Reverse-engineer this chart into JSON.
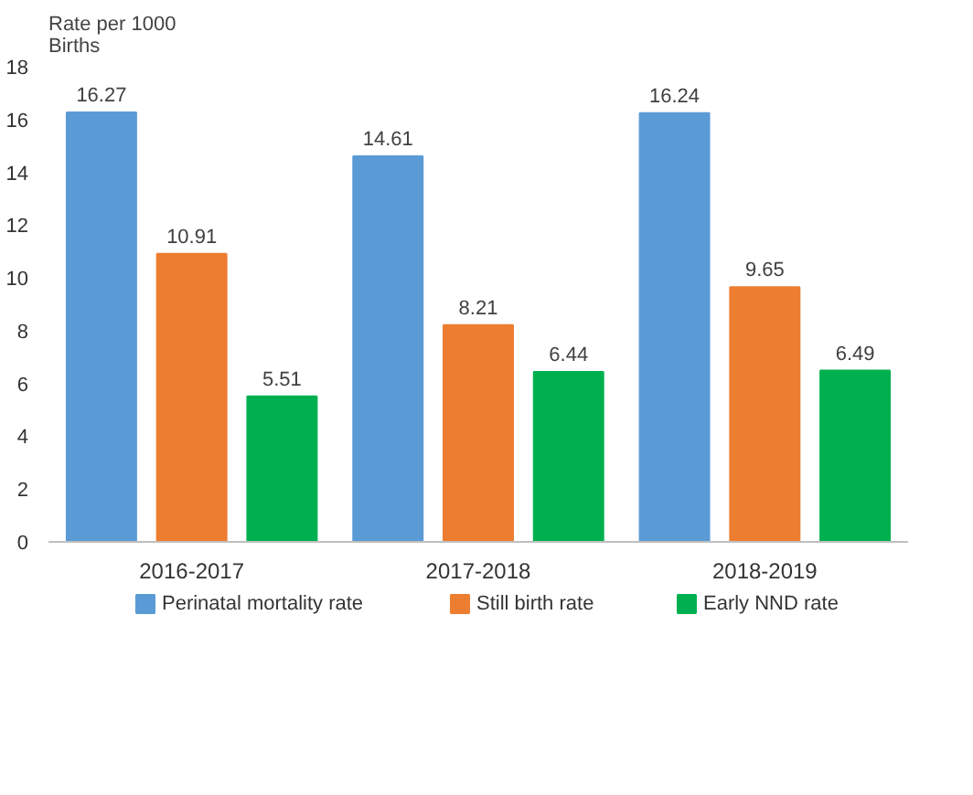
{
  "chart_data": {
    "type": "bar",
    "ylabel": "Rate per 1000\nBirths",
    "categories": [
      "2016-2017",
      "2017-2018",
      "2018-2019"
    ],
    "series": [
      {
        "name": "Perinatal mortality rate",
        "color": "#5b9bd5",
        "values": [
          16.27,
          14.61,
          16.24
        ]
      },
      {
        "name": "Still birth rate",
        "color": "#ed7d31",
        "values": [
          10.91,
          8.21,
          9.65
        ]
      },
      {
        "name": "Early NND rate",
        "color": "#00b050",
        "values": [
          5.51,
          6.44,
          6.49
        ]
      }
    ],
    "ylim": [
      0,
      18
    ],
    "yticks": [
      0,
      2,
      4,
      6,
      8,
      10,
      12,
      14,
      16,
      18
    ],
    "data_labels": true,
    "grid": false,
    "legend": "bottom"
  }
}
